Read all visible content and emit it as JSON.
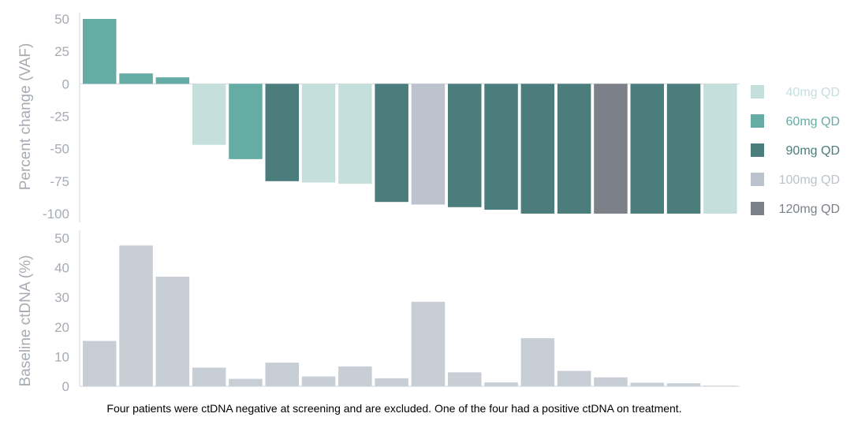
{
  "chart_data": [
    {
      "type": "bar",
      "title": "",
      "ylabel": "Percent change (VAF)",
      "xlabel": "",
      "ylim": [
        -100,
        50
      ],
      "yticks": [
        50,
        25,
        0,
        -25,
        -50,
        -75,
        -100
      ],
      "ytick_labels": [
        "50",
        "25",
        "0",
        "-25",
        "-50",
        "-75",
        "-100"
      ],
      "patients": 18,
      "values": [
        50,
        8,
        5,
        -47,
        -58,
        -75,
        -76,
        -77,
        -91,
        -93,
        -95,
        -97,
        -100,
        -100,
        -100,
        -100,
        -100,
        -100
      ],
      "doses": [
        "60mg QD",
        "60mg QD",
        "60mg QD",
        "40mg QD",
        "60mg QD",
        "90mg QD",
        "40mg QD",
        "40mg QD",
        "90mg QD",
        "100mg QD",
        "90mg QD",
        "90mg QD",
        "90mg QD",
        "90mg QD",
        "120mg QD",
        "90mg QD",
        "90mg QD",
        "40mg QD"
      ],
      "legend": [
        {
          "label": "40mg QD",
          "color": "#c5dfdd"
        },
        {
          "label": "60mg QD",
          "color": "#64aca4"
        },
        {
          "label": "90mg QD",
          "color": "#4a7d7b"
        },
        {
          "label": "100mg QD",
          "color": "#bcc3cc"
        },
        {
          "label": "120mg QD",
          "color": "#7b8089"
        }
      ],
      "legend_position": "right"
    },
    {
      "type": "bar",
      "title": "",
      "ylabel": "Baseline ctDNA (%)",
      "xlabel": "",
      "ylim": [
        0,
        50
      ],
      "yticks": [
        50,
        40,
        30,
        20,
        10,
        0
      ],
      "ytick_labels": [
        "50",
        "40",
        "30",
        "20",
        "10",
        "0"
      ],
      "values": [
        15.3,
        47.5,
        37,
        6.3,
        2.5,
        8,
        3.3,
        6.7,
        2.7,
        28.5,
        4.7,
        1.3,
        16.2,
        5.2,
        3,
        1.2,
        1,
        0.2
      ],
      "color": "#c8ced6"
    }
  ],
  "footnote": "Four patients were ctDNA negative at screening and are excluded. One of the four had a positive ctDNA on treatment."
}
